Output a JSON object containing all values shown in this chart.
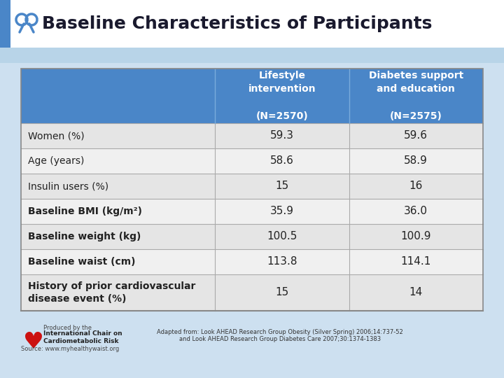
{
  "title": "Baseline Characteristics of Participants",
  "bg_color": "#cde0f0",
  "title_bar_color": "#ffffff",
  "blue_stripe_color": "#4a86c8",
  "header_bg": "#4a86c8",
  "header_text_color": "#ffffff",
  "row_colors": [
    "#e5e5e5",
    "#f0f0f0"
  ],
  "border_color": "#888888",
  "divider_color": "#aaaaaa",
  "row_label_color": "#222222",
  "col1_header": "Lifestyle\nintervention\n\n(N=2570)",
  "col2_header": "Diabetes support\nand education\n\n(N=2575)",
  "rows": [
    {
      "label": "Women (%)",
      "v1": "59.3",
      "v2": "59.6",
      "bold": false
    },
    {
      "label": "Age (years)",
      "v1": "58.6",
      "v2": "58.9",
      "bold": false
    },
    {
      "label": "Insulin users (%)",
      "v1": "15",
      "v2": "16",
      "bold": false
    },
    {
      "label": "Baseline BMI (kg/m²)",
      "v1": "35.9",
      "v2": "36.0",
      "bold": true
    },
    {
      "label": "Baseline weight (kg)",
      "v1": "100.5",
      "v2": "100.9",
      "bold": true
    },
    {
      "label": "Baseline waist (cm)",
      "v1": "113.8",
      "v2": "114.1",
      "bold": true
    },
    {
      "label": "History of prior cardiovascular\ndisease event (%)",
      "v1": "15",
      "v2": "14",
      "bold": true
    }
  ],
  "footer_left_title": "Produced by the",
  "footer_left_bold": "International Chair on\nCardiometabolic Risk",
  "footer_source": "Source: www.myhealthywaist.org",
  "footer_right": "Adapted from: Look AHEAD Research Group Obesity (Silver Spring) 2006;14:737-52\nand Look AHEAD Research Group Diabetes Care 2007;30:1374-1383",
  "title_fontsize": 18,
  "header_fontsize": 10,
  "row_fontsize": 10,
  "value_fontsize": 11,
  "footer_fontsize": 6
}
